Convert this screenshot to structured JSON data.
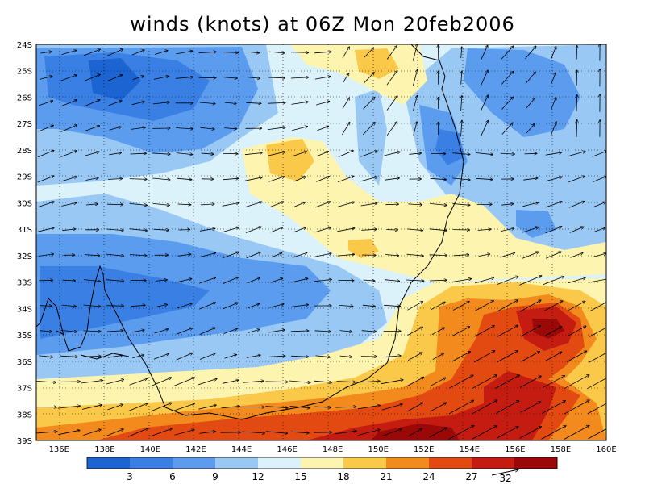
{
  "title": "winds (knots) at 06Z Mon 20feb2006",
  "map": {
    "lat_labels": [
      "24S",
      "25S",
      "26S",
      "27S",
      "28S",
      "29S",
      "30S",
      "31S",
      "32S",
      "33S",
      "34S",
      "35S",
      "36S",
      "37S",
      "38S",
      "39S"
    ],
    "lon_labels": [
      "136E",
      "138E",
      "140E",
      "142E",
      "144E",
      "146E",
      "148E",
      "150E",
      "152E",
      "154E",
      "156E",
      "158E",
      "160E"
    ],
    "lat_range": [
      -39,
      -24
    ],
    "lon_range": [
      135,
      160
    ],
    "grid": "dotted",
    "field": "wind speed (knots)"
  },
  "colorbar": {
    "ticks": [
      "3",
      "6",
      "9",
      "12",
      "15",
      "18",
      "21",
      "24",
      "27"
    ],
    "colors": [
      "#1c64d2",
      "#3a80e4",
      "#5b9cef",
      "#9ac8f5",
      "#dcf2fb",
      "#fdf4b0",
      "#fbc94a",
      "#f28a1e",
      "#e24a12",
      "#c51c12",
      "#9a0808"
    ]
  },
  "reference_vector": {
    "label": "32"
  }
}
